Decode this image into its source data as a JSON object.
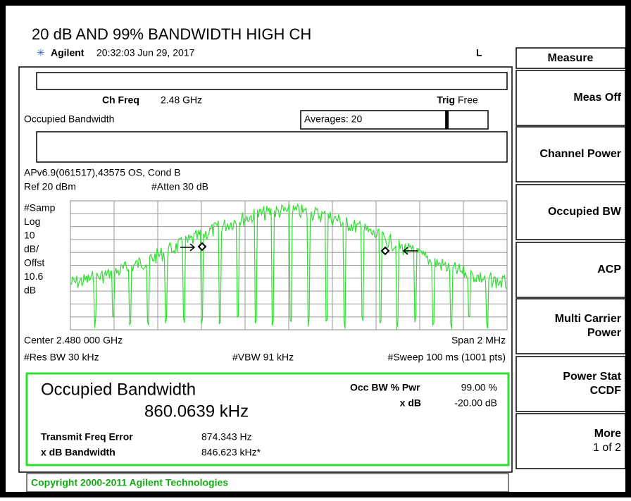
{
  "title": "20 dB AND 99% BANDWIDTH HIGH CH",
  "status": {
    "brand": "Agilent",
    "time": "20:32:03  Jun 29, 2017",
    "mode": "L"
  },
  "softkeys": {
    "menu": "Measure",
    "keys": [
      [
        "Meas Off"
      ],
      [
        "Channel Power"
      ],
      [
        "Occupied BW"
      ],
      [
        "ACP"
      ],
      [
        "Multi Carrier",
        "Power"
      ],
      [
        "Power Stat",
        "CCDF"
      ],
      [
        "More",
        "1 of 2"
      ]
    ]
  },
  "setup": {
    "ch_freq_label": "Ch Freq",
    "ch_freq": "2.48 GHz",
    "trig_label": "Trig",
    "trig": "Free",
    "measurement": "Occupied Bandwidth",
    "averages": "Averages: 20",
    "info": "APv6.9(061517),43575 OS, Cond B",
    "ref": "Ref 20 dBm",
    "atten": "#Atten 30 dB"
  },
  "scale_labels": [
    "#Samp",
    "Log",
    "10",
    "dB/",
    "Offst",
    "10.6",
    "dB"
  ],
  "footer": {
    "center": "Center 2.480 000 GHz",
    "span": "Span 2 MHz",
    "rbw": "#Res BW 30 kHz",
    "vbw": "#VBW 91 kHz",
    "sweep": "#Sweep 100 ms (1001 pts)"
  },
  "results": {
    "heading": "Occupied Bandwidth",
    "obw": "860.0639 kHz",
    "pwr_label": "Occ BW % Pwr",
    "pwr": "99.00 %",
    "xdb_label": "x dB",
    "xdb": "-20.00 dB",
    "tfe_label": "Transmit Freq Error",
    "tfe": "874.343 Hz",
    "xbw_label": "x dB Bandwidth",
    "xbw": "846.623 kHz*"
  },
  "copyright": "Copyright 2000-2011 Agilent Technologies"
}
